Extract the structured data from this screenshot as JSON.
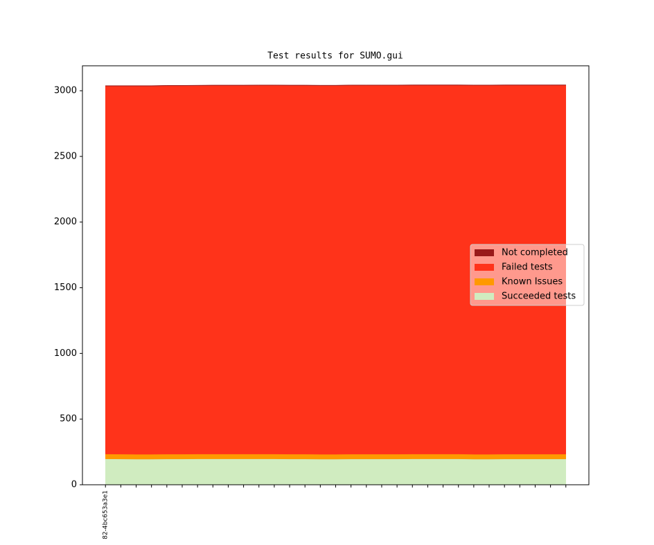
{
  "chart_data": {
    "type": "stacked-area",
    "title": "Test results for SUMO.gui",
    "categories": [
      "82-4bc653a3e1",
      null,
      null,
      null,
      null,
      null,
      null,
      null,
      null,
      null,
      null,
      null,
      null,
      null,
      null,
      null,
      null,
      null,
      null,
      null,
      null,
      null,
      null,
      null,
      null,
      null,
      null,
      null,
      null,
      null,
      null
    ],
    "series": [
      {
        "name": "Succeeded tests",
        "color": "#d0ecc0",
        "values": [
          197,
          196,
          195,
          195,
          196,
          196,
          197,
          197,
          197,
          197,
          197,
          197,
          196,
          196,
          195,
          195,
          196,
          196,
          196,
          196,
          197,
          197,
          197,
          197,
          195,
          195,
          196,
          196,
          196,
          196,
          196
        ]
      },
      {
        "name": "Known Issues",
        "color": "#ff9900",
        "values": [
          37,
          37,
          37,
          37,
          37,
          37,
          37,
          37,
          37,
          37,
          37,
          37,
          37,
          37,
          37,
          37,
          37,
          37,
          37,
          37,
          37,
          37,
          37,
          37,
          37,
          37,
          37,
          37,
          37,
          37,
          37
        ]
      },
      {
        "name": "Failed tests",
        "color": "#ff331a",
        "values": [
          2802,
          2803,
          2804,
          2804,
          2805,
          2805,
          2805,
          2806,
          2806,
          2806,
          2807,
          2807,
          2807,
          2807,
          2807,
          2807,
          2808,
          2808,
          2808,
          2808,
          2808,
          2808,
          2808,
          2808,
          2809,
          2809,
          2809,
          2809,
          2809,
          2809,
          2809
        ]
      },
      {
        "name": "Not completed",
        "color": "#991a1a",
        "values": [
          3,
          3,
          3,
          3,
          3,
          3,
          3,
          3,
          3,
          3,
          3,
          3,
          3,
          3,
          3,
          3,
          3,
          3,
          3,
          3,
          3,
          3,
          3,
          3,
          3,
          3,
          3,
          3,
          3,
          3,
          3
        ]
      }
    ],
    "ylim": [
      0,
      3190
    ],
    "yticks": [
      0,
      500,
      1000,
      1500,
      2000,
      2500,
      3000
    ],
    "grid": false,
    "legend": "right"
  }
}
